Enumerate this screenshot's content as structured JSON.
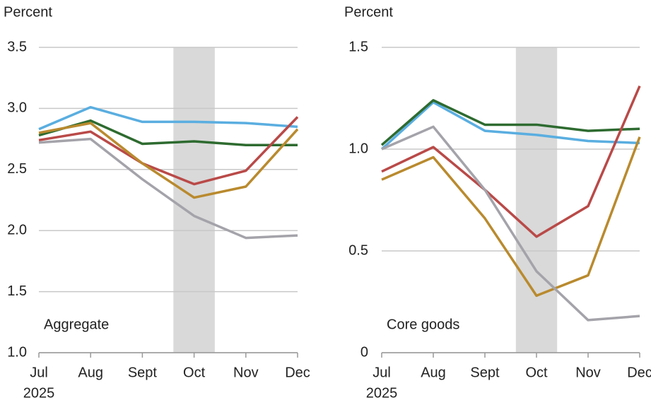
{
  "chart_data": [
    {
      "type": "line",
      "y_label": "Percent",
      "annotation": "Aggregate",
      "categories": [
        "Jul",
        "Aug",
        "Sept",
        "Oct",
        "Nov",
        "Dec"
      ],
      "year_label": "2025",
      "shaded_category": "Oct",
      "ylim": [
        1,
        3.5
      ],
      "yticks": [
        {
          "value": 1,
          "label": "1.0"
        },
        1.5,
        {
          "value": 2,
          "label": "2.0"
        },
        2.5,
        {
          "value": 3,
          "label": "3.0"
        },
        3.5
      ],
      "grid": true,
      "series": [
        {
          "color": "#5aaee0",
          "values": [
            2.83,
            3.01,
            2.89,
            2.89,
            2.88,
            2.85
          ]
        },
        {
          "color": "#2e6b30",
          "values": [
            2.78,
            2.9,
            2.71,
            2.73,
            2.7,
            2.7
          ]
        },
        {
          "color": "#b94a48",
          "values": [
            2.74,
            2.81,
            2.55,
            2.38,
            2.49,
            2.93
          ]
        },
        {
          "color": "#b98a2e",
          "values": [
            2.8,
            2.88,
            2.55,
            2.27,
            2.36,
            2.83
          ]
        },
        {
          "color": "#a4a3aa",
          "values": [
            2.72,
            2.75,
            2.42,
            2.12,
            1.94,
            1.96
          ]
        }
      ]
    },
    {
      "type": "line",
      "y_label": "Percent",
      "annotation": "Core goods",
      "categories": [
        "Jul",
        "Aug",
        "Sept",
        "Oct",
        "Nov",
        "Dec"
      ],
      "year_label": "2025",
      "shaded_category": "Oct",
      "ylim": [
        0,
        1.5
      ],
      "yticks": [
        0,
        0.5,
        {
          "value": 1,
          "label": "1.0"
        },
        1.5
      ],
      "grid": true,
      "series": [
        {
          "color": "#5aaee0",
          "values": [
            1.0,
            1.23,
            1.09,
            1.07,
            1.04,
            1.03
          ]
        },
        {
          "color": "#2e6b30",
          "values": [
            1.02,
            1.24,
            1.12,
            1.12,
            1.09,
            1.1
          ]
        },
        {
          "color": "#b94a48",
          "values": [
            0.89,
            1.01,
            0.8,
            0.57,
            0.72,
            1.31
          ]
        },
        {
          "color": "#b98a2e",
          "values": [
            0.85,
            0.96,
            0.66,
            0.28,
            0.38,
            1.06
          ]
        },
        {
          "color": "#a4a3aa",
          "values": [
            1.0,
            1.11,
            0.8,
            0.4,
            0.16,
            0.18
          ]
        }
      ]
    }
  ]
}
